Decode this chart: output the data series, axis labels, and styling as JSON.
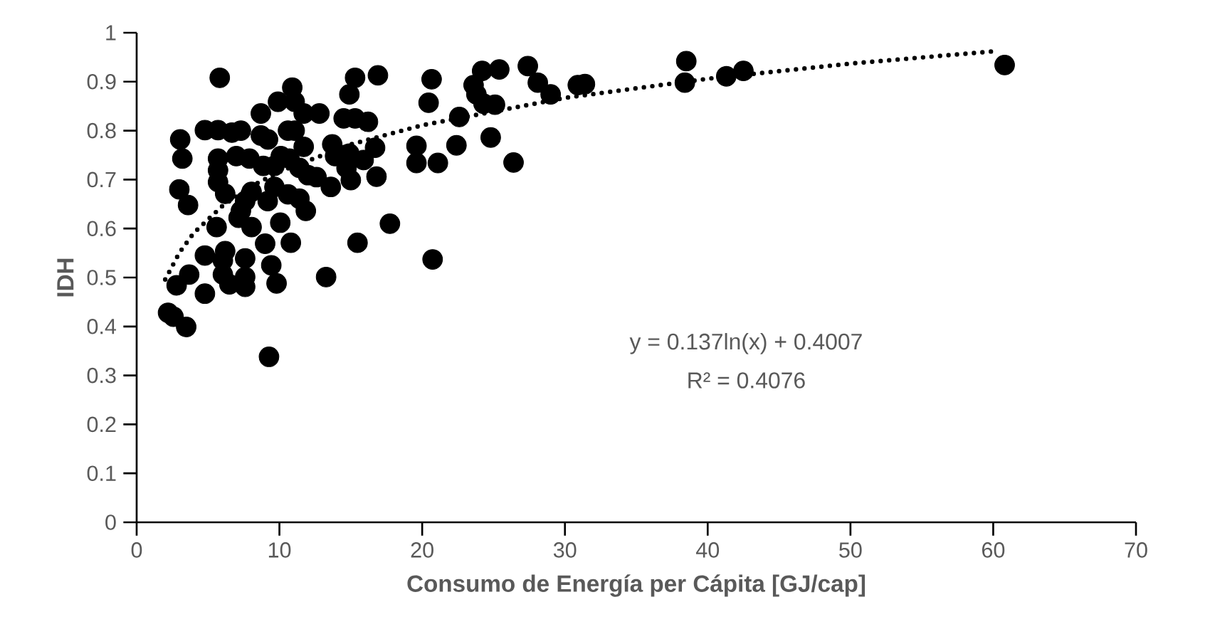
{
  "chart_data": {
    "type": "scatter",
    "xlabel": "Consumo de Energía per Cápita [GJ/cap]",
    "ylabel": "IDH",
    "xlim": [
      0,
      70
    ],
    "xticks": [
      0,
      10,
      20,
      30,
      40,
      50,
      60,
      70
    ],
    "ylim": [
      0,
      1
    ],
    "yticks": [
      0,
      0.1,
      0.2,
      0.3,
      0.4,
      0.5,
      0.6,
      0.7,
      0.8,
      0.9,
      1
    ],
    "grid": false,
    "annotations": [
      "y = 0.137ln(x) + 0.4007",
      "R² = 0.4076"
    ],
    "series": [
      {
        "color": "#000000",
        "marker": "circle",
        "x": [
          5.82,
          3.05,
          3.2,
          2.99,
          3.6,
          2.2,
          2.58,
          3.47,
          2.8,
          3.68,
          4.78,
          9.27,
          13.27,
          15.47,
          17.74,
          16.8,
          15.9,
          16.7,
          16.9,
          15.3,
          14.9,
          10.9,
          9.9,
          8.7,
          11.07,
          11.7,
          12.8,
          14.5,
          15.3,
          16.2,
          4.78,
          5.7,
          6.67,
          7.3,
          8.7,
          9.2,
          10.6,
          11.07,
          11.7,
          13.7,
          13.9,
          14.9,
          14.7,
          15.0,
          13.6,
          12.6,
          5.7,
          5.7,
          5.7,
          6.2,
          6.98,
          7.9,
          8.87,
          9.65,
          10.1,
          10.7,
          11.4,
          12.0,
          9.65,
          10.6,
          11.4,
          11.85,
          8.05,
          7.6,
          7.3,
          7.14,
          5.6,
          8.05,
          10.06,
          9.0,
          10.8,
          4.78,
          6.2,
          6.04,
          7.6,
          9.43,
          6.5,
          7.6,
          7.6,
          9.8,
          6.04,
          9.18,
          20.66,
          20.45,
          22.6,
          19.6,
          19.6,
          21.1,
          22.4,
          24.8,
          26.4,
          20.73,
          24.2,
          25.4,
          23.6,
          23.8,
          24.3,
          25.1,
          27.4,
          28.1,
          29.0,
          30.9,
          31.4,
          38.5,
          38.4,
          41.3,
          42.5,
          60.8
        ],
        "values": [
          0.908,
          0.782,
          0.743,
          0.68,
          0.648,
          0.428,
          0.42,
          0.399,
          0.484,
          0.506,
          0.467,
          0.338,
          0.501,
          0.571,
          0.61,
          0.706,
          0.74,
          0.765,
          0.913,
          0.908,
          0.874,
          0.888,
          0.859,
          0.835,
          0.859,
          0.835,
          0.835,
          0.825,
          0.825,
          0.818,
          0.801,
          0.801,
          0.796,
          0.8,
          0.79,
          0.782,
          0.8,
          0.8,
          0.767,
          0.772,
          0.748,
          0.753,
          0.724,
          0.699,
          0.685,
          0.705,
          0.743,
          0.719,
          0.695,
          0.671,
          0.748,
          0.743,
          0.728,
          0.728,
          0.748,
          0.743,
          0.724,
          0.709,
          0.685,
          0.67,
          0.661,
          0.636,
          0.675,
          0.656,
          0.636,
          0.622,
          0.603,
          0.603,
          0.612,
          0.569,
          0.571,
          0.545,
          0.554,
          0.535,
          0.539,
          0.525,
          0.486,
          0.501,
          0.481,
          0.488,
          0.506,
          0.656,
          0.905,
          0.857,
          0.828,
          0.769,
          0.734,
          0.734,
          0.77,
          0.786,
          0.735,
          0.537,
          0.922,
          0.925,
          0.893,
          0.874,
          0.855,
          0.853,
          0.932,
          0.898,
          0.874,
          0.893,
          0.895,
          0.942,
          0.898,
          0.911,
          0.922,
          0.934
        ]
      },
      {
        "type": "line",
        "color": "#000000",
        "line_style": "dotted",
        "marker": "none",
        "x": [
          2,
          3,
          4,
          6,
          8,
          10,
          15,
          20,
          30,
          40,
          50,
          60
        ],
        "values": [
          0.496,
          0.551,
          0.591,
          0.646,
          0.686,
          0.716,
          0.772,
          0.811,
          0.867,
          0.906,
          0.937,
          0.962
        ]
      }
    ]
  }
}
